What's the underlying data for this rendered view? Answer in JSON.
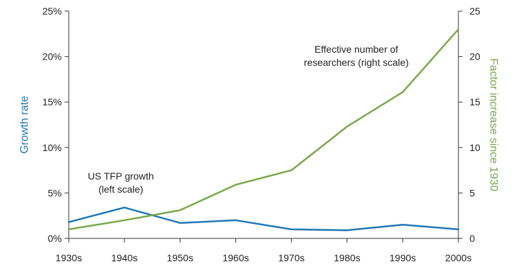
{
  "chart_data": {
    "type": "line",
    "categories": [
      "1930s",
      "1940s",
      "1950s",
      "1960s",
      "1970s",
      "1980s",
      "1990s",
      "2000s"
    ],
    "series": [
      {
        "name": "US TFP growth",
        "axis": "left",
        "color": "#1f77b4",
        "values": [
          1.8,
          3.4,
          1.7,
          2.0,
          1.0,
          0.9,
          1.5,
          1.0
        ]
      },
      {
        "name": "Effective number of researchers",
        "axis": "right",
        "color": "#77a84a",
        "values": [
          1.0,
          2.0,
          3.1,
          5.9,
          7.5,
          12.3,
          16.1,
          23.0
        ]
      }
    ],
    "y_left": {
      "label": "Growth rate",
      "color": "#1f77b4",
      "range": [
        0,
        25
      ],
      "ticks": [
        0,
        5,
        10,
        15,
        20,
        25
      ],
      "tick_labels": [
        "0%",
        "5%",
        "10%",
        "15%",
        "20%",
        "25%"
      ]
    },
    "y_right": {
      "label": "Factor increase since 1930",
      "color": "#77a84a",
      "range": [
        0,
        25
      ],
      "ticks": [
        0,
        5,
        10,
        15,
        20,
        25
      ],
      "tick_labels": [
        "0",
        "5",
        "10",
        "15",
        "20",
        "25"
      ]
    },
    "annotations": [
      {
        "name": "tfp-annotation",
        "lines": [
          "US TFP growth",
          "(left scale)"
        ]
      },
      {
        "name": "researchers-annotation",
        "lines": [
          "Effective number of",
          "researchers (right scale)"
        ]
      }
    ],
    "grid": false,
    "legend": "none"
  }
}
